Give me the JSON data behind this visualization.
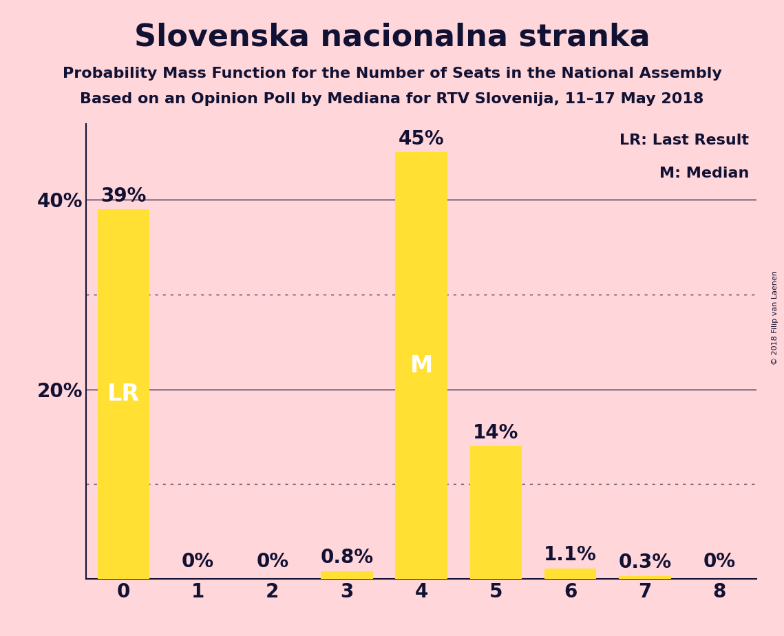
{
  "title": "Slovenska nacionalna stranka",
  "subtitle1": "Probability Mass Function for the Number of Seats in the National Assembly",
  "subtitle2": "Based on an Opinion Poll by Mediana for RTV Slovenija, 11–17 May 2018",
  "copyright": "© 2018 Filip van Laenen",
  "categories": [
    0,
    1,
    2,
    3,
    4,
    5,
    6,
    7,
    8
  ],
  "values": [
    39.0,
    0.0,
    0.0,
    0.8,
    45.0,
    14.0,
    1.1,
    0.3,
    0.0
  ],
  "bar_labels": [
    "39%",
    "0%",
    "0%",
    "0.8%",
    "45%",
    "14%",
    "1.1%",
    "0.3%",
    "0%"
  ],
  "bar_color": "#FFE033",
  "background_color": "#FFD6DA",
  "text_color": "#111133",
  "label_inside_bars": {
    "0": "LR",
    "4": "M"
  },
  "label_inside_color": "#ffffff",
  "ymax": 48,
  "legend_text1": "LR: Last Result",
  "legend_text2": "M: Median",
  "dotted_lines": [
    10,
    30
  ],
  "solid_lines": [
    20,
    40
  ],
  "title_fontsize": 32,
  "subtitle_fontsize": 16,
  "axis_tick_fontsize": 20,
  "bar_label_fontsize": 20,
  "inside_label_fontsize": 24,
  "legend_fontsize": 16
}
